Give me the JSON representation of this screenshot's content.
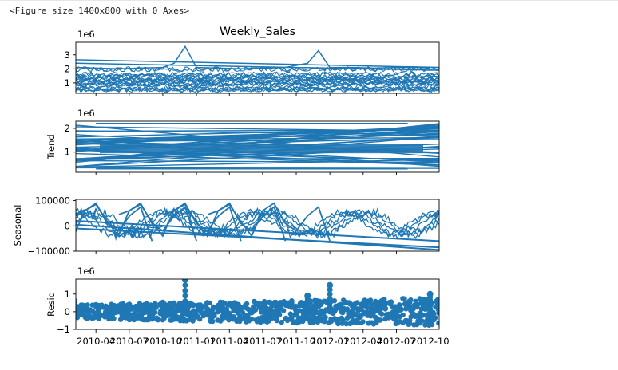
{
  "output_text": "<Figure size 1400x800 with 0 Axes>",
  "chart_data": [
    {
      "type": "line",
      "title": "Weekly_Sales",
      "ylabel": "",
      "offset_label": "1e6",
      "ylim": [
        0.25,
        3.9
      ],
      "yticks": [
        1,
        2,
        3
      ],
      "ytick_labels": [
        "1",
        "2",
        "3"
      ],
      "series": [
        {
          "x": [
            "2010-02",
            "2010-04",
            "2010-06",
            "2010-08",
            "2010-10",
            "2010-11",
            "2010-12",
            "2011-01",
            "2011-03",
            "2011-05",
            "2011-07",
            "2011-09",
            "2011-11",
            "2011-12",
            "2012-01",
            "2012-03",
            "2012-05",
            "2012-07",
            "2012-09",
            "2012-10"
          ],
          "values": [
            2.1,
            2.05,
            2.0,
            2.05,
            2.1,
            2.4,
            3.6,
            2.1,
            2.05,
            2.0,
            2.05,
            2.1,
            2.4,
            3.3,
            2.1,
            2.1,
            2.05,
            2.1,
            2.1,
            2.05
          ]
        }
      ]
    },
    {
      "type": "line",
      "title": "",
      "ylabel": "Trend",
      "offset_label": "1e6",
      "ylim": [
        0.15,
        2.3
      ],
      "yticks": [
        1,
        2
      ],
      "ytick_labels": [
        "1",
        "2"
      ],
      "series": [
        {
          "x": [
            "2010-04",
            "2012-08"
          ],
          "values": [
            2.2,
            2.2
          ]
        },
        {
          "x": [
            "2010-04",
            "2012-08"
          ],
          "values": [
            0.3,
            0.3
          ]
        }
      ]
    },
    {
      "type": "line",
      "title": "",
      "ylabel": "Seasonal",
      "offset_label": "",
      "ylim": [
        -100000,
        105000
      ],
      "yticks": [
        -100000,
        0,
        100000
      ],
      "ytick_labels": [
        "−100000",
        "0",
        "100000"
      ],
      "series": [
        {
          "x": [
            "2010-02",
            "2010-03",
            "2010-04",
            "2010-05",
            "2010-06",
            "2010-07",
            "2010-08",
            "2010-09",
            "2010-10",
            "2010-11",
            "2010-12",
            "2011-01"
          ],
          "values": [
            45000,
            60000,
            85000,
            20000,
            -40000,
            60000,
            90000,
            10000,
            -20000,
            40000,
            75000,
            -60000
          ]
        }
      ]
    },
    {
      "type": "scatter",
      "title": "",
      "ylabel": "Resid",
      "offset_label": "1e6",
      "ylim": [
        -1.0,
        1.85
      ],
      "yticks": [
        -1,
        0,
        1
      ],
      "ytick_labels": [
        "−1",
        "0",
        "1"
      ],
      "series": [
        {
          "x": [
            "2010-02",
            "2010-06",
            "2010-10",
            "2010-12",
            "2011-03",
            "2011-07",
            "2011-11",
            "2012-01",
            "2012-05",
            "2012-10"
          ],
          "values": [
            0.6,
            0.3,
            0.5,
            1.8,
            0.3,
            0.2,
            0.9,
            1.5,
            0.3,
            1.0
          ]
        }
      ]
    }
  ],
  "x_ticks": [
    "2010-04",
    "2010-07",
    "2010-10",
    "2011-01",
    "2011-04",
    "2011-07",
    "2011-10",
    "2012-01",
    "2012-04",
    "2012-07",
    "2012-10"
  ]
}
